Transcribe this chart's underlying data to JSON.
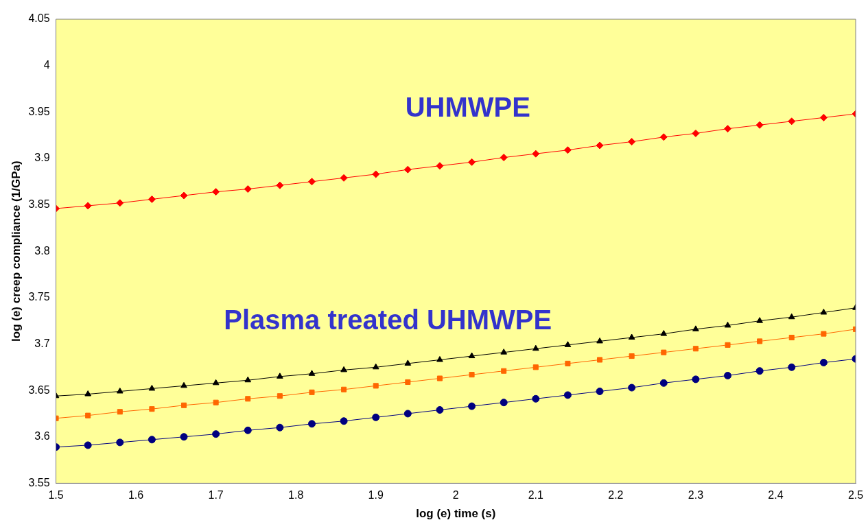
{
  "chart_data": {
    "type": "line",
    "xlabel": "log (e) time (s)",
    "ylabel": "log (e) creep compliance (1/GPa)",
    "x": [
      1.5,
      1.54,
      1.58,
      1.62,
      1.66,
      1.7,
      1.74,
      1.78,
      1.82,
      1.86,
      1.9,
      1.94,
      1.98,
      2.02,
      2.06,
      2.1,
      2.14,
      2.18,
      2.22,
      2.26,
      2.3,
      2.34,
      2.38,
      2.42,
      2.46,
      2.5
    ],
    "series": [
      {
        "color": "#ff0000",
        "marker": "diamond",
        "values": [
          3.846,
          3.849,
          3.852,
          3.856,
          3.86,
          3.864,
          3.867,
          3.871,
          3.875,
          3.879,
          3.883,
          3.888,
          3.892,
          3.896,
          3.901,
          3.905,
          3.909,
          3.914,
          3.918,
          3.923,
          3.927,
          3.932,
          3.936,
          3.94,
          3.944,
          3.948
        ]
      },
      {
        "color": "#000000",
        "marker": "triangle",
        "values": [
          3.644,
          3.646,
          3.649,
          3.652,
          3.655,
          3.658,
          3.661,
          3.665,
          3.668,
          3.672,
          3.675,
          3.679,
          3.683,
          3.687,
          3.691,
          3.695,
          3.699,
          3.703,
          3.707,
          3.711,
          3.716,
          3.72,
          3.725,
          3.729,
          3.734,
          3.739
        ]
      },
      {
        "color": "#ff6600",
        "marker": "square",
        "values": [
          3.62,
          3.623,
          3.627,
          3.63,
          3.634,
          3.637,
          3.641,
          3.644,
          3.648,
          3.651,
          3.655,
          3.659,
          3.663,
          3.667,
          3.671,
          3.675,
          3.679,
          3.683,
          3.687,
          3.691,
          3.695,
          3.699,
          3.703,
          3.707,
          3.711,
          3.716
        ]
      },
      {
        "color": "#000080",
        "marker": "circle",
        "values": [
          3.589,
          3.591,
          3.594,
          3.597,
          3.6,
          3.603,
          3.607,
          3.61,
          3.614,
          3.617,
          3.621,
          3.625,
          3.629,
          3.633,
          3.637,
          3.641,
          3.645,
          3.649,
          3.653,
          3.658,
          3.662,
          3.666,
          3.671,
          3.675,
          3.68,
          3.684
        ]
      }
    ],
    "xlim": [
      1.5,
      2.5
    ],
    "xticks": [
      1.5,
      1.6,
      1.7,
      1.8,
      1.9,
      2,
      2.1,
      2.2,
      2.3,
      2.4,
      2.5
    ],
    "ylim": [
      3.55,
      4.05
    ],
    "yticks": [
      3.55,
      3.6,
      3.65,
      3.7,
      3.75,
      3.8,
      3.85,
      3.9,
      3.95,
      4,
      4.05
    ],
    "annotations": [
      "UHMWPE",
      "Plasma treated UHMWPE"
    ],
    "grid": false,
    "legend": false,
    "line_style": "solid"
  }
}
